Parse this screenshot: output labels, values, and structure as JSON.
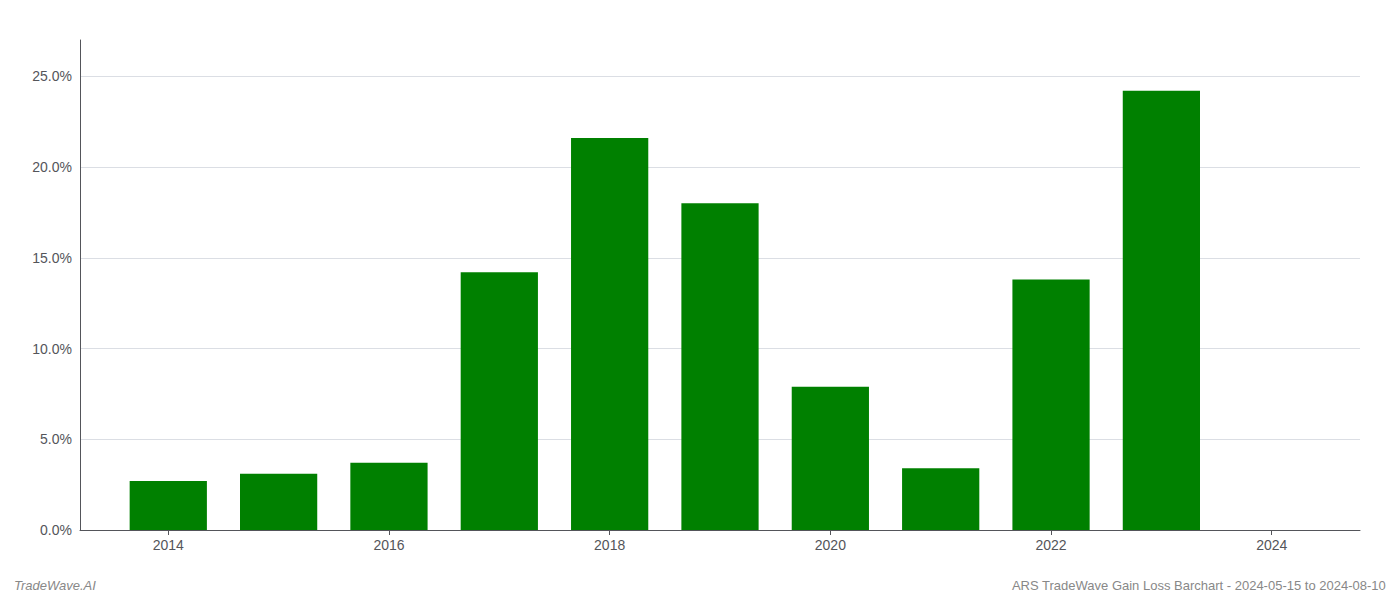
{
  "chart_data": {
    "type": "bar",
    "x": [
      2014,
      2015,
      2016,
      2017,
      2018,
      2019,
      2020,
      2021,
      2022,
      2023
    ],
    "values": [
      0.027,
      0.031,
      0.037,
      0.142,
      0.216,
      0.18,
      0.079,
      0.034,
      0.138,
      0.242
    ],
    "color": "#008000",
    "xlim": [
      2013.2,
      2024.8
    ],
    "xticks": [
      2014,
      2016,
      2018,
      2020,
      2022,
      2024
    ],
    "ylim": [
      0,
      0.27
    ],
    "yticks": [
      {
        "value": 0.0,
        "label": "0.0%"
      },
      {
        "value": 0.05,
        "label": "5.0%"
      },
      {
        "value": 0.1,
        "label": "10.0%"
      },
      {
        "value": 0.15,
        "label": "15.0%"
      },
      {
        "value": 0.2,
        "label": "20.0%"
      },
      {
        "value": 0.25,
        "label": "25.0%"
      }
    ],
    "grid": true,
    "annotations": [
      "TradeWave.AI",
      "ARS TradeWave Gain Loss Barchart - 2024-05-15 to 2024-08-10"
    ]
  }
}
